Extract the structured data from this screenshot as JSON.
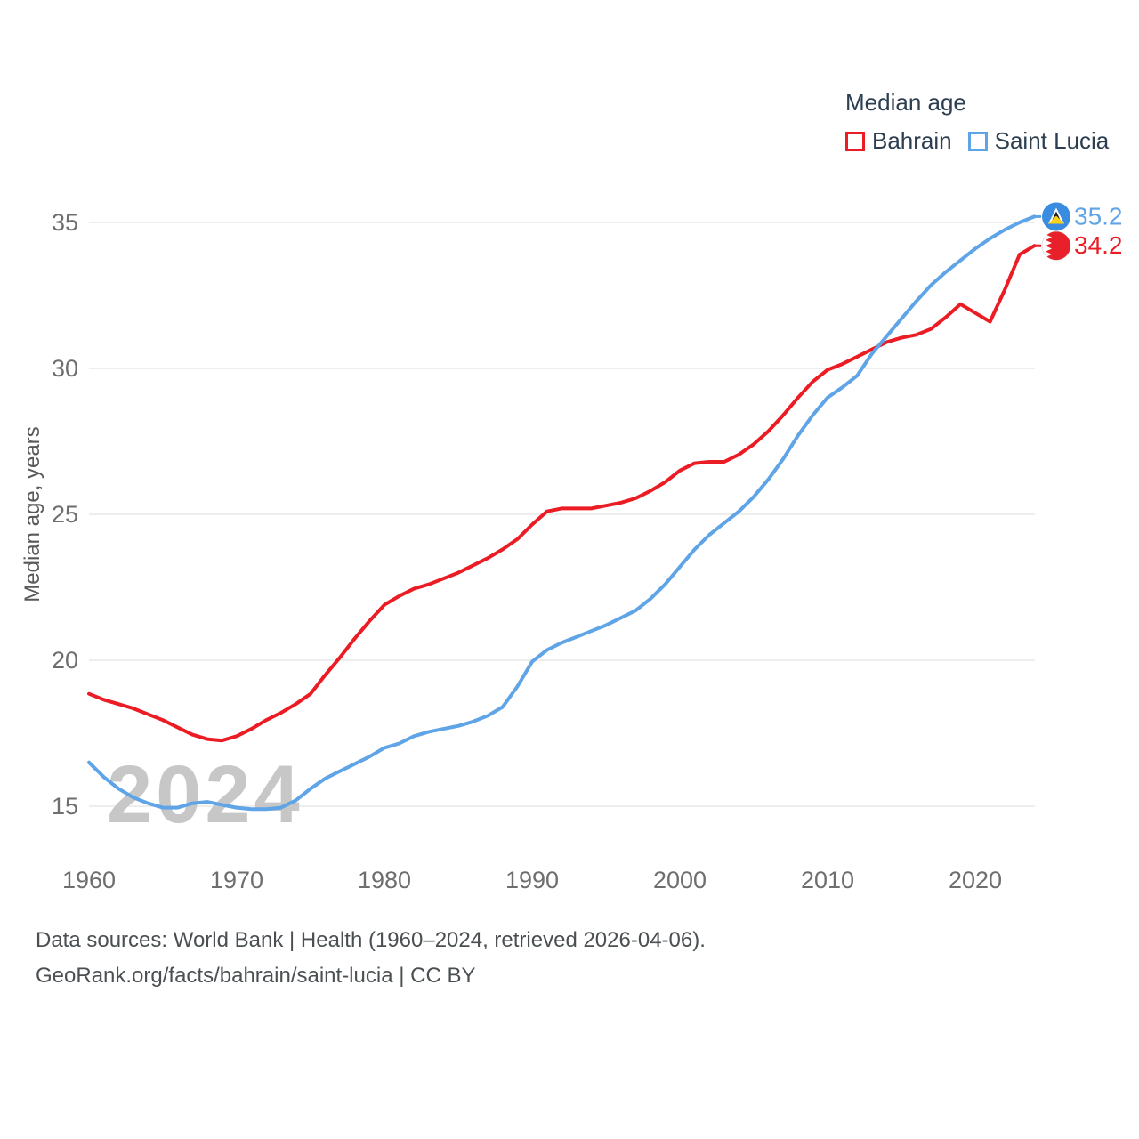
{
  "legend": {
    "title": "Median age",
    "items": [
      {
        "label": "Bahrain",
        "color": "#ec1c24"
      },
      {
        "label": "Saint Lucia",
        "color": "#5fa4e6"
      }
    ]
  },
  "watermark": "2024",
  "footer": {
    "line1": "Data sources: World Bank | Health (1960–2024, retrieved 2026-04-06).",
    "line2": "GeoRank.org/facts/bahrain/saint-lucia | CC BY"
  },
  "chart_data": {
    "type": "line",
    "title": "Median age",
    "xlabel": "",
    "ylabel": "Median age, years",
    "grid": "horizontal",
    "legend_position": "top-right",
    "ylim": [
      13.5,
      36.5
    ],
    "xticks": [
      1960,
      1970,
      1980,
      1990,
      2000,
      2010,
      2020
    ],
    "yticks": [
      15,
      20,
      25,
      30,
      35
    ],
    "x": [
      1960,
      1961,
      1962,
      1963,
      1964,
      1965,
      1966,
      1967,
      1968,
      1969,
      1970,
      1971,
      1972,
      1973,
      1974,
      1975,
      1976,
      1977,
      1978,
      1979,
      1980,
      1981,
      1982,
      1983,
      1984,
      1985,
      1986,
      1987,
      1988,
      1989,
      1990,
      1991,
      1992,
      1993,
      1994,
      1995,
      1996,
      1997,
      1998,
      1999,
      2000,
      2001,
      2002,
      2003,
      2004,
      2005,
      2006,
      2007,
      2008,
      2009,
      2010,
      2011,
      2012,
      2013,
      2014,
      2015,
      2016,
      2017,
      2018,
      2019,
      2020,
      2021,
      2022,
      2023,
      2024
    ],
    "series": [
      {
        "name": "Bahrain",
        "color": "#ec1c24",
        "flag": "bahrain-flag-icon",
        "end_label": "34.2",
        "values": [
          18.85,
          18.65,
          18.5,
          18.35,
          18.15,
          17.95,
          17.7,
          17.45,
          17.3,
          17.25,
          17.4,
          17.65,
          17.95,
          18.2,
          18.5,
          18.85,
          19.5,
          20.1,
          20.75,
          21.35,
          21.9,
          22.2,
          22.45,
          22.6,
          22.8,
          23.0,
          23.25,
          23.5,
          23.8,
          24.15,
          24.65,
          25.1,
          25.2,
          25.2,
          25.2,
          25.3,
          25.4,
          25.55,
          25.8,
          26.1,
          26.5,
          26.75,
          26.8,
          26.8,
          27.05,
          27.4,
          27.85,
          28.4,
          29.0,
          29.55,
          29.95,
          30.15,
          30.4,
          30.65,
          30.9,
          31.05,
          31.15,
          31.35,
          31.75,
          32.2,
          31.9,
          31.6,
          32.7,
          33.9,
          34.2
        ]
      },
      {
        "name": "Saint Lucia",
        "color": "#5fa4e6",
        "flag": "saint-lucia-flag-icon",
        "end_label": "35.2",
        "values": [
          16.5,
          16.0,
          15.6,
          15.3,
          15.1,
          14.95,
          14.95,
          15.1,
          15.15,
          15.05,
          14.95,
          14.9,
          14.9,
          14.95,
          15.2,
          15.6,
          15.95,
          16.2,
          16.45,
          16.7,
          17.0,
          17.15,
          17.4,
          17.55,
          17.65,
          17.75,
          17.9,
          18.1,
          18.4,
          19.1,
          19.95,
          20.35,
          20.6,
          20.8,
          21.0,
          21.2,
          21.45,
          21.7,
          22.1,
          22.6,
          23.2,
          23.8,
          24.3,
          24.7,
          25.1,
          25.6,
          26.2,
          26.9,
          27.7,
          28.4,
          29.0,
          29.35,
          29.75,
          30.5,
          31.1,
          31.7,
          32.3,
          32.85,
          33.3,
          33.7,
          34.1,
          34.45,
          34.75,
          35.0,
          35.2
        ]
      }
    ]
  }
}
